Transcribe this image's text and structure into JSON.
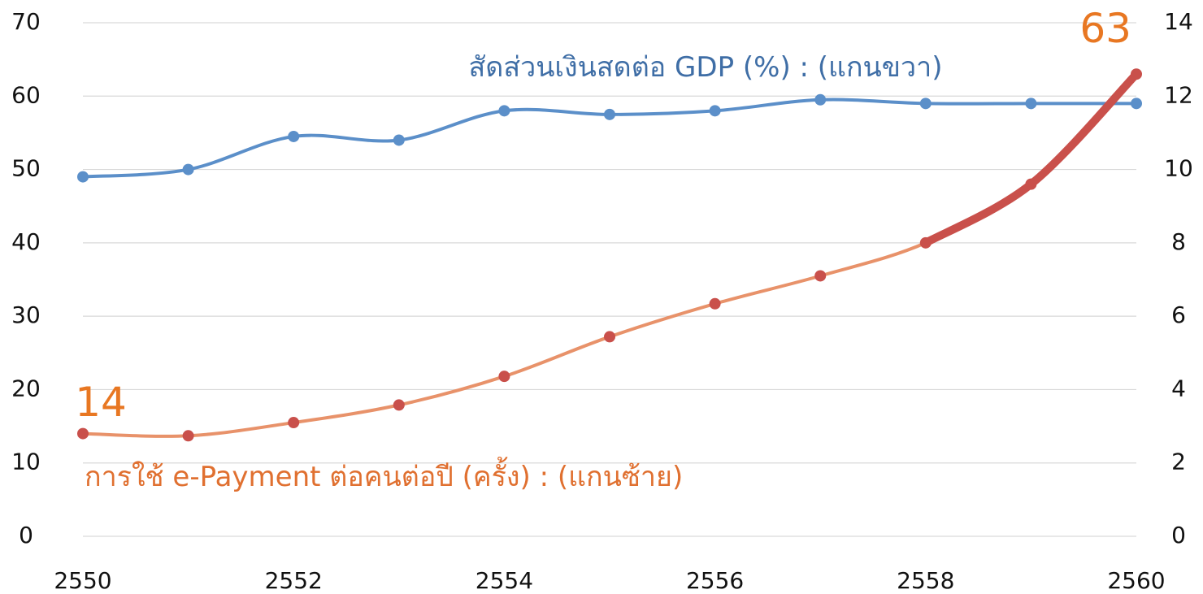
{
  "chart_data": {
    "type": "line",
    "x": [
      2550,
      2551,
      2552,
      2553,
      2554,
      2555,
      2556,
      2557,
      2558,
      2559,
      2560
    ],
    "xlim": [
      2550,
      2560
    ],
    "xticks": [
      2550,
      2552,
      2554,
      2556,
      2558,
      2560
    ],
    "ylim": [
      0,
      70
    ],
    "yticks": [
      0,
      10,
      20,
      30,
      40,
      50,
      60,
      70
    ],
    "y2lim": [
      0,
      14
    ],
    "y2ticks": [
      0,
      2,
      4,
      6,
      8,
      10,
      12,
      14
    ],
    "grid": true,
    "series": [
      {
        "name": "สัดส่วนเงินสดต่อ GDP (%) : (แกนขวา)",
        "color": "#5b8fc9",
        "axis": "y2",
        "values": [
          9.8,
          10.0,
          10.9,
          10.8,
          11.6,
          11.5,
          11.6,
          11.9,
          11.8,
          11.8,
          11.8
        ]
      },
      {
        "name": "การใช้ e-Payment ต่อคนต่อปี (ครั้ง) : (แกนซ้าย)",
        "color": "#e8926a",
        "axis": "y",
        "values": [
          14,
          13.7,
          15.5,
          17.9,
          21.8,
          27.2,
          31.7,
          35.5,
          40.0,
          48,
          63
        ],
        "value_labels": [
          "14",
          null,
          null,
          null,
          null,
          null,
          null,
          null,
          null,
          null,
          "63"
        ],
        "highlight_from": 2558,
        "highlight_color": "#c9504b"
      }
    ]
  }
}
